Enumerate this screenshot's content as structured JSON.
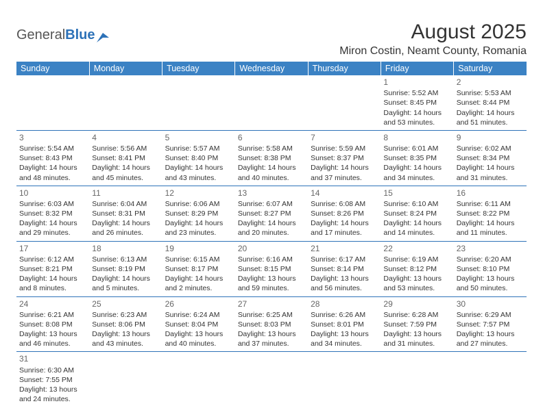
{
  "logo": {
    "general": "General",
    "blue": "Blue"
  },
  "title": "August 2025",
  "location": "Miron Costin, Neamt County, Romania",
  "dayHeaders": [
    "Sunday",
    "Monday",
    "Tuesday",
    "Wednesday",
    "Thursday",
    "Friday",
    "Saturday"
  ],
  "colors": {
    "headerBg": "#3b82c4",
    "headerText": "#ffffff",
    "borderLine": "#2d72b8",
    "text": "#333333",
    "dayNum": "#666666"
  },
  "weeks": [
    [
      null,
      null,
      null,
      null,
      null,
      {
        "n": "1",
        "sr": "Sunrise: 5:52 AM",
        "ss": "Sunset: 8:45 PM",
        "d1": "Daylight: 14 hours",
        "d2": "and 53 minutes."
      },
      {
        "n": "2",
        "sr": "Sunrise: 5:53 AM",
        "ss": "Sunset: 8:44 PM",
        "d1": "Daylight: 14 hours",
        "d2": "and 51 minutes."
      }
    ],
    [
      {
        "n": "3",
        "sr": "Sunrise: 5:54 AM",
        "ss": "Sunset: 8:43 PM",
        "d1": "Daylight: 14 hours",
        "d2": "and 48 minutes."
      },
      {
        "n": "4",
        "sr": "Sunrise: 5:56 AM",
        "ss": "Sunset: 8:41 PM",
        "d1": "Daylight: 14 hours",
        "d2": "and 45 minutes."
      },
      {
        "n": "5",
        "sr": "Sunrise: 5:57 AM",
        "ss": "Sunset: 8:40 PM",
        "d1": "Daylight: 14 hours",
        "d2": "and 43 minutes."
      },
      {
        "n": "6",
        "sr": "Sunrise: 5:58 AM",
        "ss": "Sunset: 8:38 PM",
        "d1": "Daylight: 14 hours",
        "d2": "and 40 minutes."
      },
      {
        "n": "7",
        "sr": "Sunrise: 5:59 AM",
        "ss": "Sunset: 8:37 PM",
        "d1": "Daylight: 14 hours",
        "d2": "and 37 minutes."
      },
      {
        "n": "8",
        "sr": "Sunrise: 6:01 AM",
        "ss": "Sunset: 8:35 PM",
        "d1": "Daylight: 14 hours",
        "d2": "and 34 minutes."
      },
      {
        "n": "9",
        "sr": "Sunrise: 6:02 AM",
        "ss": "Sunset: 8:34 PM",
        "d1": "Daylight: 14 hours",
        "d2": "and 31 minutes."
      }
    ],
    [
      {
        "n": "10",
        "sr": "Sunrise: 6:03 AM",
        "ss": "Sunset: 8:32 PM",
        "d1": "Daylight: 14 hours",
        "d2": "and 29 minutes."
      },
      {
        "n": "11",
        "sr": "Sunrise: 6:04 AM",
        "ss": "Sunset: 8:31 PM",
        "d1": "Daylight: 14 hours",
        "d2": "and 26 minutes."
      },
      {
        "n": "12",
        "sr": "Sunrise: 6:06 AM",
        "ss": "Sunset: 8:29 PM",
        "d1": "Daylight: 14 hours",
        "d2": "and 23 minutes."
      },
      {
        "n": "13",
        "sr": "Sunrise: 6:07 AM",
        "ss": "Sunset: 8:27 PM",
        "d1": "Daylight: 14 hours",
        "d2": "and 20 minutes."
      },
      {
        "n": "14",
        "sr": "Sunrise: 6:08 AM",
        "ss": "Sunset: 8:26 PM",
        "d1": "Daylight: 14 hours",
        "d2": "and 17 minutes."
      },
      {
        "n": "15",
        "sr": "Sunrise: 6:10 AM",
        "ss": "Sunset: 8:24 PM",
        "d1": "Daylight: 14 hours",
        "d2": "and 14 minutes."
      },
      {
        "n": "16",
        "sr": "Sunrise: 6:11 AM",
        "ss": "Sunset: 8:22 PM",
        "d1": "Daylight: 14 hours",
        "d2": "and 11 minutes."
      }
    ],
    [
      {
        "n": "17",
        "sr": "Sunrise: 6:12 AM",
        "ss": "Sunset: 8:21 PM",
        "d1": "Daylight: 14 hours",
        "d2": "and 8 minutes."
      },
      {
        "n": "18",
        "sr": "Sunrise: 6:13 AM",
        "ss": "Sunset: 8:19 PM",
        "d1": "Daylight: 14 hours",
        "d2": "and 5 minutes."
      },
      {
        "n": "19",
        "sr": "Sunrise: 6:15 AM",
        "ss": "Sunset: 8:17 PM",
        "d1": "Daylight: 14 hours",
        "d2": "and 2 minutes."
      },
      {
        "n": "20",
        "sr": "Sunrise: 6:16 AM",
        "ss": "Sunset: 8:15 PM",
        "d1": "Daylight: 13 hours",
        "d2": "and 59 minutes."
      },
      {
        "n": "21",
        "sr": "Sunrise: 6:17 AM",
        "ss": "Sunset: 8:14 PM",
        "d1": "Daylight: 13 hours",
        "d2": "and 56 minutes."
      },
      {
        "n": "22",
        "sr": "Sunrise: 6:19 AM",
        "ss": "Sunset: 8:12 PM",
        "d1": "Daylight: 13 hours",
        "d2": "and 53 minutes."
      },
      {
        "n": "23",
        "sr": "Sunrise: 6:20 AM",
        "ss": "Sunset: 8:10 PM",
        "d1": "Daylight: 13 hours",
        "d2": "and 50 minutes."
      }
    ],
    [
      {
        "n": "24",
        "sr": "Sunrise: 6:21 AM",
        "ss": "Sunset: 8:08 PM",
        "d1": "Daylight: 13 hours",
        "d2": "and 46 minutes."
      },
      {
        "n": "25",
        "sr": "Sunrise: 6:23 AM",
        "ss": "Sunset: 8:06 PM",
        "d1": "Daylight: 13 hours",
        "d2": "and 43 minutes."
      },
      {
        "n": "26",
        "sr": "Sunrise: 6:24 AM",
        "ss": "Sunset: 8:04 PM",
        "d1": "Daylight: 13 hours",
        "d2": "and 40 minutes."
      },
      {
        "n": "27",
        "sr": "Sunrise: 6:25 AM",
        "ss": "Sunset: 8:03 PM",
        "d1": "Daylight: 13 hours",
        "d2": "and 37 minutes."
      },
      {
        "n": "28",
        "sr": "Sunrise: 6:26 AM",
        "ss": "Sunset: 8:01 PM",
        "d1": "Daylight: 13 hours",
        "d2": "and 34 minutes."
      },
      {
        "n": "29",
        "sr": "Sunrise: 6:28 AM",
        "ss": "Sunset: 7:59 PM",
        "d1": "Daylight: 13 hours",
        "d2": "and 31 minutes."
      },
      {
        "n": "30",
        "sr": "Sunrise: 6:29 AM",
        "ss": "Sunset: 7:57 PM",
        "d1": "Daylight: 13 hours",
        "d2": "and 27 minutes."
      }
    ],
    [
      {
        "n": "31",
        "sr": "Sunrise: 6:30 AM",
        "ss": "Sunset: 7:55 PM",
        "d1": "Daylight: 13 hours",
        "d2": "and 24 minutes."
      },
      null,
      null,
      null,
      null,
      null,
      null
    ]
  ]
}
